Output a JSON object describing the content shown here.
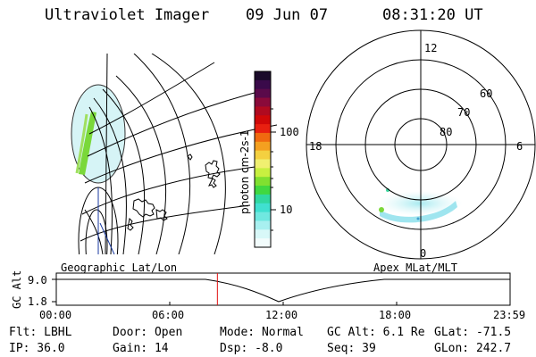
{
  "header": {
    "instrument": "Ultraviolet Imager",
    "date": "09 Jun 07",
    "time": "08:31:20 UT"
  },
  "colorbar": {
    "label": "photon cm-2s-1",
    "ticks": [
      "100",
      "10"
    ],
    "colors": [
      "#1a0a2a",
      "#3a0a4a",
      "#5a0a4a",
      "#8a0a3a",
      "#b00a20",
      "#d00808",
      "#e82010",
      "#f06a10",
      "#f4a020",
      "#f4d040",
      "#f0f070",
      "#c8f040",
      "#80e030",
      "#40d840",
      "#30d8a0",
      "#40e0d0",
      "#70e8e0",
      "#a8f0f0",
      "#d8f8f8",
      "#f2fcfc"
    ]
  },
  "geo_panel": {
    "label": "Geographic Lat/Lon"
  },
  "polar_panel": {
    "label": "Apex MLat/MLT",
    "mlt_labels": {
      "top": "12",
      "bottom": "0",
      "left": "18",
      "right": "6"
    },
    "lat_labels": [
      "60",
      "70",
      "80"
    ]
  },
  "timeline": {
    "axis_title": "GC Alt",
    "y_ticks": [
      "9.0",
      "1.8"
    ],
    "x_ticks": [
      "00:00",
      "06:00",
      "12:00",
      "18:00",
      "23:59"
    ],
    "cursor_time_fraction": 0.355
  },
  "info": {
    "flt": "Flt: LBHL",
    "ip": "IP: 36.0",
    "door": "Door: Open",
    "gain": "Gain: 14",
    "mode": "Mode: Normal",
    "dsp": "Dsp:   -8.0",
    "gc_alt": "GC Alt: 6.1 Re",
    "seq": "Seq: 39",
    "glat": "GLat: -71.5",
    "glon": "GLon: 242.7"
  }
}
